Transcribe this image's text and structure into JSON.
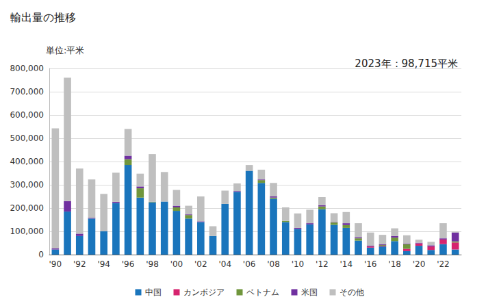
{
  "chart_data": {
    "type": "bar",
    "title": "輸出量の推移",
    "y_label": "単位:平米",
    "annotation": "2023年：98,715平米",
    "stacked": true,
    "grid": true,
    "legend": "bottom",
    "categories": [
      "'90",
      null,
      "'92",
      null,
      "'94",
      null,
      "'96",
      null,
      "'98",
      null,
      "'00",
      null,
      "'02",
      null,
      "'04",
      null,
      "'06",
      null,
      "'08",
      null,
      "'10",
      null,
      "'12",
      null,
      "'14",
      null,
      "'16",
      null,
      "'18",
      null,
      "'20",
      null,
      "'22",
      null
    ],
    "ylim": [
      0,
      800000
    ],
    "yticks": [
      0,
      {
        "value": 100000,
        "label": "100,000"
      },
      {
        "value": 200000,
        "label": "200,000"
      },
      {
        "value": 300000,
        "label": "300,000"
      },
      {
        "value": 400000,
        "label": "400,000"
      },
      {
        "value": 500000,
        "label": "500,000"
      },
      {
        "value": 600000,
        "label": "600,000"
      },
      {
        "value": 700000,
        "label": "700,000"
      },
      {
        "value": 800000,
        "label": "800,000"
      }
    ],
    "series": [
      {
        "name": "中国",
        "color": "#1a75bc",
        "values": [
          22000,
          185000,
          80000,
          155000,
          100000,
          222000,
          385000,
          245000,
          225000,
          228000,
          188000,
          155000,
          140000,
          80000,
          218000,
          270000,
          360000,
          308000,
          240000,
          140000,
          110000,
          130000,
          195000,
          128000,
          115000,
          60000,
          30000,
          35000,
          58000,
          15000,
          38000,
          20000,
          45000,
          22000
        ]
      },
      {
        "name": "カンボジア",
        "color": "#d6246e",
        "values": [
          0,
          0,
          0,
          0,
          0,
          0,
          0,
          0,
          0,
          0,
          0,
          0,
          0,
          0,
          0,
          0,
          0,
          0,
          0,
          0,
          0,
          0,
          0,
          0,
          0,
          0,
          5000,
          3000,
          0,
          10000,
          10000,
          15000,
          20000,
          30000
        ]
      },
      {
        "name": "ベトナム",
        "color": "#70963c",
        "values": [
          0,
          0,
          0,
          0,
          0,
          0,
          25000,
          40000,
          2000,
          0,
          15000,
          15000,
          0,
          0,
          0,
          0,
          0,
          12000,
          5000,
          5000,
          0,
          0,
          12000,
          10000,
          12000,
          10000,
          0,
          3000,
          15000,
          20000,
          0,
          0,
          0,
          5000
        ]
      },
      {
        "name": "米国",
        "color": "#7030a0",
        "values": [
          5000,
          45000,
          10000,
          3000,
          0,
          5000,
          15000,
          8000,
          0,
          0,
          7000,
          3000,
          3000,
          0,
          0,
          3000,
          0,
          3000,
          5000,
          0,
          5000,
          5000,
          5000,
          2000,
          8000,
          5000,
          3000,
          3000,
          7000,
          3000,
          3000,
          5000,
          5000,
          38000
        ]
      },
      {
        "name": "その他",
        "color": "#bfbfbf",
        "values": [
          516000,
          530000,
          280000,
          165000,
          161000,
          125000,
          115000,
          55000,
          205000,
          127000,
          68000,
          37000,
          107000,
          42000,
          57000,
          33000,
          25000,
          42000,
          58000,
          58000,
          62000,
          58000,
          35000,
          38000,
          48000,
          60000,
          57000,
          41000,
          33000,
          35000,
          13000,
          15000,
          65000,
          3715
        ]
      }
    ]
  }
}
